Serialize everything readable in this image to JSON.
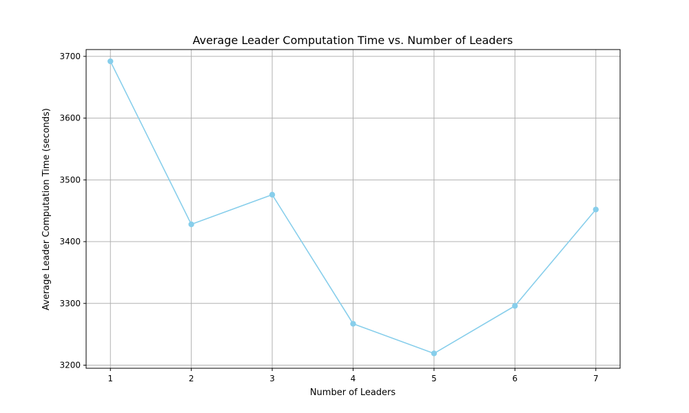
{
  "chart_data": {
    "type": "line",
    "title": "Average Leader Computation Time vs. Number of Leaders",
    "xlabel": "Number of Leaders",
    "ylabel": "Average Leader Computation Time (seconds)",
    "x": [
      1,
      2,
      3,
      4,
      5,
      6,
      7
    ],
    "series": [
      {
        "values": [
          3692,
          3428,
          3476,
          3267,
          3219,
          3296,
          3452
        ],
        "color": "#87ceeb",
        "marker": "circle"
      }
    ],
    "xticks": [
      "1",
      "2",
      "3",
      "4",
      "5",
      "6",
      "7"
    ],
    "yticks": [
      "3200",
      "3300",
      "3400",
      "3500",
      "3600",
      "3700"
    ],
    "xlim": [
      0.7,
      7.3
    ],
    "ylim": [
      3195,
      3711
    ],
    "grid": true,
    "legend": "none"
  }
}
